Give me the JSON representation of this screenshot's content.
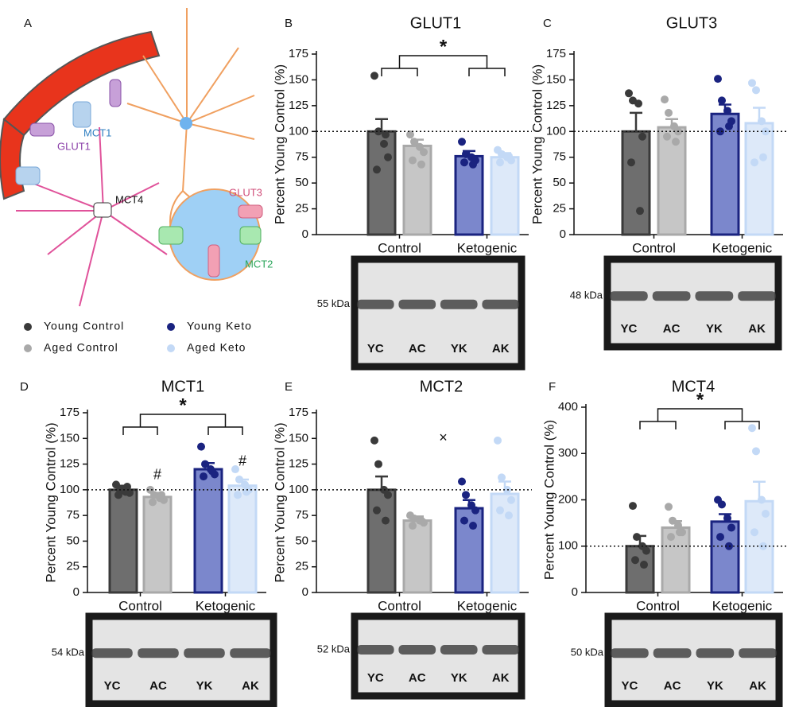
{
  "diagram": {
    "panel": "A",
    "labels": [
      "MCT1",
      "GLUT1",
      "GLUT3",
      "MCT4",
      "MCT2"
    ]
  },
  "legend": [
    {
      "name": "Young Control",
      "color": "#3a3a3a",
      "fill": "#6e6e6e"
    },
    {
      "name": "Aged Control",
      "color": "#a9a9a9",
      "fill": "#c6c6c6"
    },
    {
      "name": "Young Keto",
      "color": "#1a2380",
      "fill": "#7b87cc"
    },
    {
      "name": "Aged Keto",
      "color": "#c3d9f6",
      "fill": "#dde9f9"
    }
  ],
  "lanes": [
    "YC",
    "AC",
    "YK",
    "AK"
  ],
  "chart_data": [
    {
      "type": "bar",
      "panel": "B",
      "title": "GLUT1",
      "ylabel": "Percent Young Control (%)",
      "groups": [
        "Control",
        "Ketogenic"
      ],
      "values": [
        100,
        86,
        76,
        75
      ],
      "errors": [
        12,
        6,
        5,
        4
      ],
      "points": [
        [
          154,
          100,
          88,
          75,
          63,
          97
        ],
        [
          97,
          90,
          85,
          80,
          72,
          68
        ],
        [
          90,
          78,
          75,
          72,
          70,
          68
        ],
        [
          82,
          78,
          75,
          72,
          70,
          76
        ]
      ],
      "ylim": [
        0,
        175
      ],
      "yticks": [
        0,
        25,
        50,
        75,
        100,
        125,
        150,
        175
      ],
      "reference": 100,
      "annotations": [
        {
          "kind": "bracket",
          "text": "*"
        }
      ],
      "blot_label": "55 kDa"
    },
    {
      "type": "bar",
      "panel": "C",
      "title": "GLUT3",
      "ylabel": "Percent Young Control (%)",
      "groups": [
        "Control",
        "Ketogenic"
      ],
      "values": [
        100,
        104,
        117,
        108
      ],
      "errors": [
        18,
        8,
        9,
        15
      ],
      "points": [
        [
          137,
          130,
          127,
          95,
          70,
          23
        ],
        [
          131,
          118,
          105,
          100,
          95,
          90
        ],
        [
          151,
          130,
          120,
          110,
          100,
          105
        ],
        [
          147,
          140,
          110,
          100,
          70,
          75
        ]
      ],
      "ylim": [
        0,
        175
      ],
      "yticks": [
        0,
        25,
        50,
        75,
        100,
        125,
        150,
        175
      ],
      "reference": 100,
      "annotations": [],
      "blot_label": "48 kDa"
    },
    {
      "type": "bar",
      "panel": "D",
      "title": "MCT1",
      "ylabel": "Percent Young Control (%)",
      "groups": [
        "Control",
        "Ketogenic"
      ],
      "values": [
        100,
        93,
        120,
        104
      ],
      "errors": [
        4,
        4,
        6,
        6
      ],
      "points": [
        [
          105,
          100,
          98,
          97,
          95,
          103
        ],
        [
          100,
          95,
          92,
          90,
          88,
          95
        ],
        [
          142,
          125,
          120,
          115,
          113,
          118
        ],
        [
          120,
          110,
          105,
          100,
          95,
          98
        ]
      ],
      "ylim": [
        0,
        175
      ],
      "yticks": [
        0,
        25,
        50,
        75,
        100,
        125,
        150,
        175
      ],
      "reference": 100,
      "annotations": [
        {
          "kind": "bracket",
          "text": "*"
        },
        {
          "kind": "bar",
          "bar": 1,
          "text": "#"
        },
        {
          "kind": "bar",
          "bar": 3,
          "text": "#"
        }
      ],
      "blot_label": "54 kDa"
    },
    {
      "type": "bar",
      "panel": "E",
      "title": "MCT2",
      "ylabel": "Percent Young Control (%)",
      "groups": [
        "Control",
        "Ketogenic"
      ],
      "values": [
        100,
        70,
        82,
        96
      ],
      "errors": [
        13,
        4,
        8,
        12
      ],
      "points": [
        [
          148,
          125,
          100,
          95,
          80,
          70
        ],
        [
          75,
          72,
          70,
          68,
          65,
          70
        ],
        [
          108,
          95,
          85,
          80,
          70,
          65
        ],
        [
          148,
          112,
          100,
          90,
          80,
          75
        ]
      ],
      "ylim": [
        0,
        175
      ],
      "yticks": [
        0,
        25,
        50,
        75,
        100,
        125,
        150,
        175
      ],
      "reference": 100,
      "annotations": [
        {
          "kind": "center",
          "text": "×"
        }
      ],
      "blot_label": "52 kDa"
    },
    {
      "type": "bar",
      "panel": "F",
      "title": "MCT4",
      "ylabel": "Percent Young Control (%)",
      "groups": [
        "Control",
        "Ketogenic"
      ],
      "values": [
        100,
        140,
        153,
        197
      ],
      "errors": [
        22,
        14,
        16,
        42
      ],
      "points": [
        [
          187,
          120,
          100,
          90,
          70,
          60
        ],
        [
          185,
          155,
          145,
          130,
          120,
          130
        ],
        [
          200,
          190,
          160,
          140,
          120,
          100
        ],
        [
          355,
          305,
          200,
          170,
          130,
          100
        ]
      ],
      "ylim": [
        0,
        400
      ],
      "yticks": [
        0,
        100,
        200,
        300,
        400
      ],
      "reference": 100,
      "annotations": [
        {
          "kind": "bracket",
          "text": "*"
        }
      ],
      "blot_label": "50 kDa"
    }
  ]
}
